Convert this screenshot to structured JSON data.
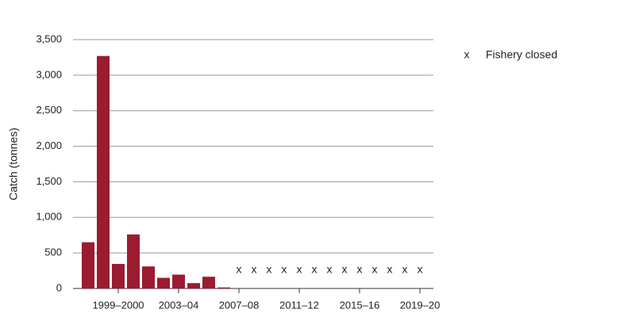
{
  "chart_data": {
    "type": "bar",
    "y_label": "Catch (tonnes)",
    "categories": [
      null,
      null,
      "1999–2000",
      null,
      null,
      null,
      "2003–04",
      null,
      null,
      null,
      "2007–08",
      null,
      null,
      null,
      "2011–12",
      null,
      null,
      null,
      "2015–16",
      null,
      null,
      null,
      "2019–20"
    ],
    "values": [
      650,
      3270,
      345,
      760,
      310,
      150,
      195,
      75,
      165,
      15,
      null,
      null,
      null,
      null,
      null,
      null,
      null,
      null,
      null,
      null,
      null,
      null,
      null
    ],
    "color": "#9b1b30",
    "closed": [
      false,
      false,
      false,
      false,
      false,
      false,
      false,
      false,
      false,
      false,
      true,
      true,
      true,
      true,
      true,
      true,
      true,
      true,
      true,
      true,
      true,
      true,
      true
    ],
    "closed_symbol": "x",
    "closed_label": "Fishery closed",
    "ylim": [
      0,
      3500
    ],
    "yticks": [
      0,
      500,
      {
        "value": 1000,
        "label": "1,000"
      },
      {
        "value": 1500,
        "label": "1,500"
      },
      {
        "value": 2000,
        "label": "2,000"
      },
      {
        "value": 2500,
        "label": "2,500"
      },
      {
        "value": 3000,
        "label": "3,000"
      },
      {
        "value": 3500,
        "label": "3,500"
      }
    ],
    "grid": true
  }
}
